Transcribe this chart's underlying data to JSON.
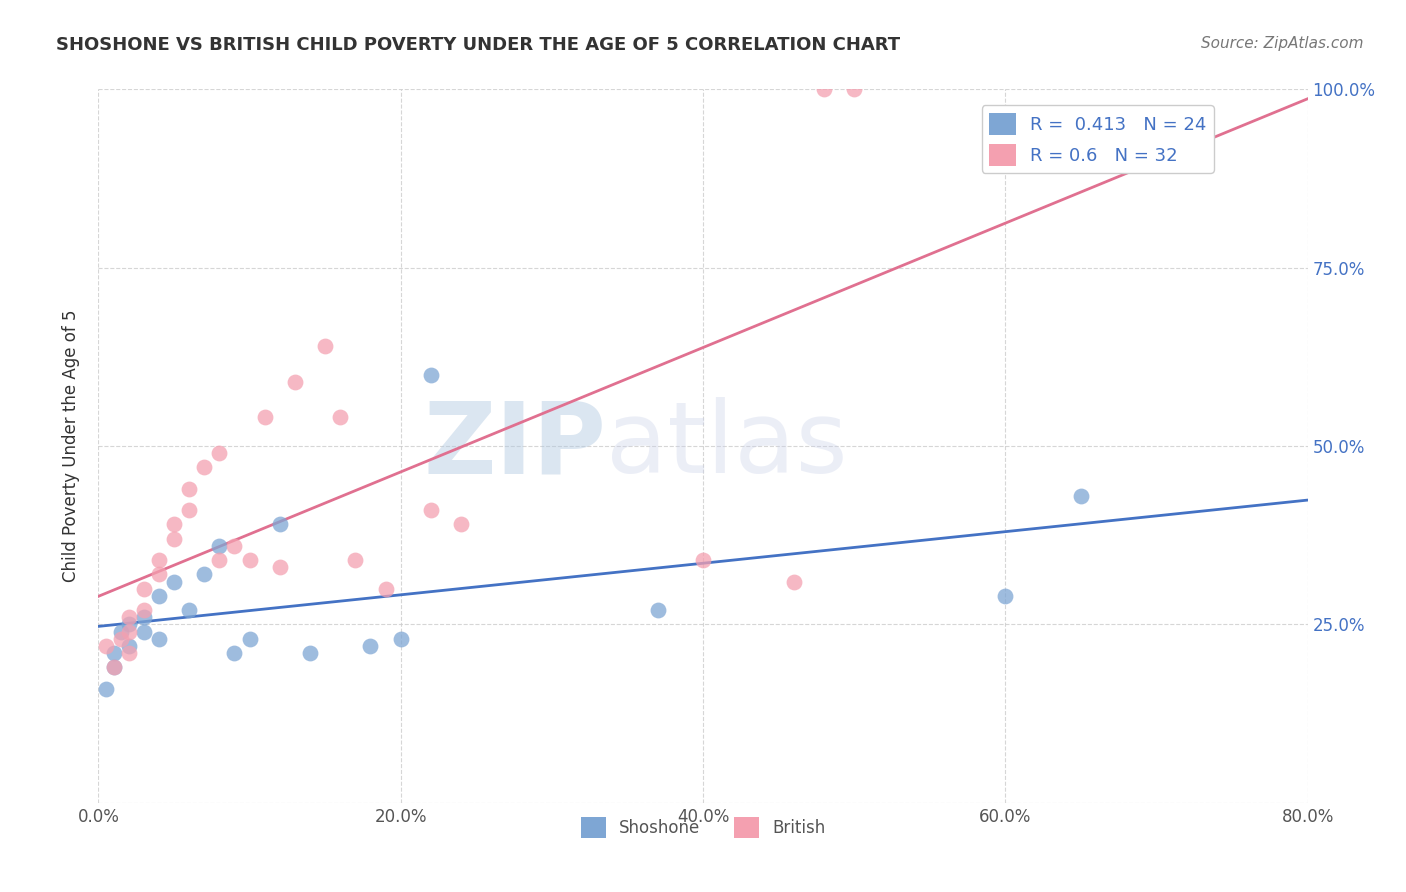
{
  "title": "SHOSHONE VS BRITISH CHILD POVERTY UNDER THE AGE OF 5 CORRELATION CHART",
  "source": "Source: ZipAtlas.com",
  "ylabel": "Child Poverty Under the Age of 5",
  "xlim": [
    0.0,
    0.8
  ],
  "ylim": [
    0.0,
    1.0
  ],
  "xticks": [
    0.0,
    0.2,
    0.4,
    0.6,
    0.8
  ],
  "xticklabels": [
    "0.0%",
    "20.0%",
    "40.0%",
    "60.0%",
    "80.0%"
  ],
  "yticks": [
    0.0,
    0.25,
    0.5,
    0.75,
    1.0
  ],
  "yticklabels": [
    "",
    "25.0%",
    "50.0%",
    "75.0%",
    "100.0%"
  ],
  "shoshone_R": 0.413,
  "shoshone_N": 24,
  "british_R": 0.6,
  "british_N": 32,
  "shoshone_color": "#7ea6d4",
  "british_color": "#f4a0b0",
  "shoshone_line_color": "#4472c4",
  "british_line_color": "#e07090",
  "watermark_zip": "ZIP",
  "watermark_atlas": "atlas",
  "shoshone_x": [
    0.005,
    0.01,
    0.01,
    0.015,
    0.02,
    0.02,
    0.03,
    0.03,
    0.04,
    0.04,
    0.05,
    0.06,
    0.07,
    0.08,
    0.09,
    0.1,
    0.12,
    0.14,
    0.18,
    0.2,
    0.22,
    0.37,
    0.6,
    0.65
  ],
  "shoshone_y": [
    0.16,
    0.21,
    0.19,
    0.24,
    0.22,
    0.25,
    0.26,
    0.24,
    0.29,
    0.23,
    0.31,
    0.27,
    0.32,
    0.36,
    0.21,
    0.23,
    0.39,
    0.21,
    0.22,
    0.23,
    0.6,
    0.27,
    0.29,
    0.43
  ],
  "british_x": [
    0.005,
    0.01,
    0.015,
    0.02,
    0.02,
    0.02,
    0.03,
    0.03,
    0.04,
    0.04,
    0.05,
    0.05,
    0.06,
    0.06,
    0.07,
    0.08,
    0.08,
    0.09,
    0.1,
    0.11,
    0.12,
    0.13,
    0.15,
    0.16,
    0.17,
    0.19,
    0.22,
    0.24,
    0.4,
    0.46,
    0.48,
    0.5
  ],
  "british_y": [
    0.22,
    0.19,
    0.23,
    0.21,
    0.24,
    0.26,
    0.3,
    0.27,
    0.34,
    0.32,
    0.39,
    0.37,
    0.44,
    0.41,
    0.47,
    0.34,
    0.49,
    0.36,
    0.34,
    0.54,
    0.33,
    0.59,
    0.64,
    0.54,
    0.34,
    0.3,
    0.41,
    0.39,
    0.34,
    0.31,
    1.0,
    1.0
  ]
}
